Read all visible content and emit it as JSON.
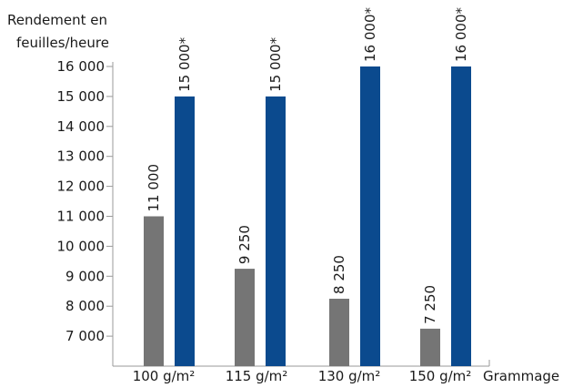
{
  "chart_data": {
    "type": "bar",
    "ylabel_line1": "Rendement en",
    "ylabel_line2": "feuilles/heure",
    "xlabel": "Grammage",
    "categories": [
      "100 g/m²",
      "115 g/m²",
      "130 g/m²",
      "150 g/m²"
    ],
    "y_ticks": [
      "7 000",
      "8 000",
      "9 000",
      "10 000",
      "11 000",
      "12 000",
      "13 000",
      "14 000",
      "15 000",
      "16 000"
    ],
    "ylim": [
      6000,
      16000
    ],
    "series": [
      {
        "color": "#757575",
        "values": [
          11000,
          9250,
          8250,
          7250
        ],
        "value_labels": [
          "11 000",
          "9 250",
          "8 250",
          "7 250"
        ]
      },
      {
        "color": "#0b4a8e",
        "values": [
          15000,
          15000,
          16000,
          16000
        ],
        "value_labels": [
          "15 000*",
          "15 000*",
          "16 000*",
          "16 000*"
        ]
      }
    ],
    "grid": false
  }
}
